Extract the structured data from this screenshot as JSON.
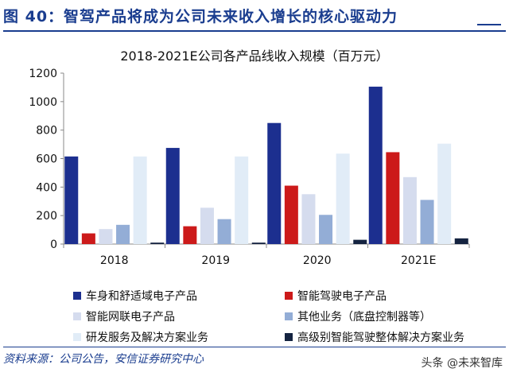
{
  "header": {
    "title": "图 40：智驾产品将成为公司未来收入增长的核心驱动力"
  },
  "source": "资料来源：公司公告，安信证券研究中心",
  "watermark": "头条 @未来智库",
  "chart_data": {
    "type": "bar",
    "title": "2018-2021E公司各产品线收入规模（百万元）",
    "categories": [
      "2018",
      "2019",
      "2020",
      "2021E"
    ],
    "ylim": [
      0,
      1200
    ],
    "yticks": [
      0,
      200,
      400,
      600,
      800,
      1000,
      1200
    ],
    "xlabel": "",
    "ylabel": "",
    "legend_position": "bottom",
    "series": [
      {
        "name": "车身和舒适域电子产品",
        "color": "#1c2f8f",
        "values": [
          615,
          675,
          850,
          1105
        ]
      },
      {
        "name": "智能驾驶电子产品",
        "color": "#cc1a1a",
        "values": [
          75,
          125,
          410,
          645
        ]
      },
      {
        "name": "智能网联电子产品",
        "color": "#d5dcee",
        "values": [
          105,
          255,
          350,
          470
        ]
      },
      {
        "name": "其他业务（底盘控制器等）",
        "color": "#93add6",
        "values": [
          135,
          175,
          205,
          310
        ]
      },
      {
        "name": "研发服务及解决方案业务",
        "color": "#e1ecf7",
        "values": [
          615,
          615,
          635,
          705
        ]
      },
      {
        "name": "高级别智能驾驶整体解决方案业务",
        "color": "#142340",
        "values": [
          10,
          10,
          30,
          40
        ]
      }
    ]
  }
}
